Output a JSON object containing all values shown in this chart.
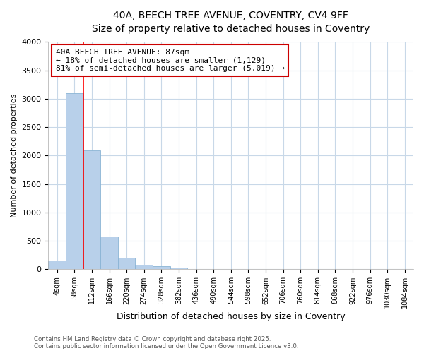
{
  "title_line1": "40A, BEECH TREE AVENUE, COVENTRY, CV4 9FF",
  "title_line2": "Size of property relative to detached houses in Coventry",
  "xlabel": "Distribution of detached houses by size in Coventry",
  "ylabel": "Number of detached properties",
  "categories": [
    "4sqm",
    "58sqm",
    "112sqm",
    "166sqm",
    "220sqm",
    "274sqm",
    "328sqm",
    "382sqm",
    "436sqm",
    "490sqm",
    "544sqm",
    "598sqm",
    "652sqm",
    "706sqm",
    "760sqm",
    "814sqm",
    "868sqm",
    "922sqm",
    "976sqm",
    "1030sqm",
    "1084sqm"
  ],
  "values": [
    150,
    3100,
    2090,
    580,
    200,
    75,
    50,
    30,
    0,
    0,
    0,
    0,
    0,
    0,
    0,
    0,
    0,
    0,
    0,
    0,
    0
  ],
  "bar_color": "#b8d0ea",
  "bar_edge_color": "#8ab4d4",
  "vline_x": 1.5,
  "vline_color": "#ff0000",
  "annotation_text": "40A BEECH TREE AVENUE: 87sqm\n← 18% of detached houses are smaller (1,129)\n81% of semi-detached houses are larger (5,019) →",
  "annotation_box_color": "#cc0000",
  "annotation_fill": "#ffffff",
  "ylim": [
    0,
    4000
  ],
  "yticks": [
    0,
    500,
    1000,
    1500,
    2000,
    2500,
    3000,
    3500,
    4000
  ],
  "footer_line1": "Contains HM Land Registry data © Crown copyright and database right 2025.",
  "footer_line2": "Contains public sector information licensed under the Open Government Licence v3.0.",
  "background_color": "#ffffff",
  "plot_bg_color": "#ffffff",
  "grid_color": "#c8d8e8"
}
